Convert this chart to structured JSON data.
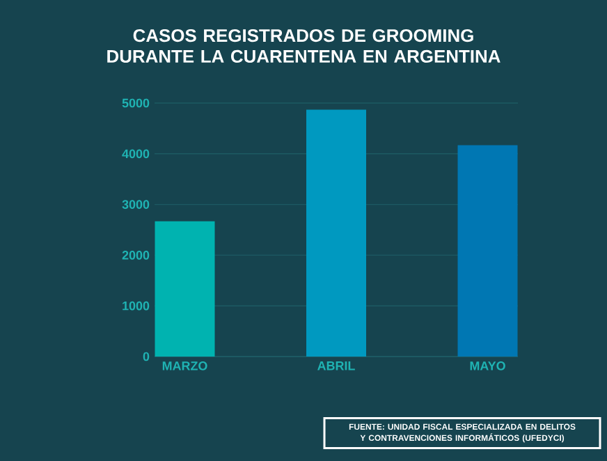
{
  "chart_data": {
    "type": "bar",
    "title": "CASOS REGISTRADOS DE GROOMING DURANTE LA CUARENTENA EN ARGENTINA",
    "categories": [
      "MARZO",
      "ABRIL",
      "MAYO"
    ],
    "values": [
      2670,
      4870,
      4170
    ],
    "colors": [
      "#00b3b0",
      "#0099c0",
      "#0077b3"
    ],
    "ylim": [
      0,
      5000
    ],
    "yticks": [
      0,
      1000,
      2000,
      3000,
      4000,
      5000
    ],
    "grid": "y",
    "annotations": [
      "FUENTE: UNIDAD FISCAL ESPECIALIZADA EN DELITOS Y CONTRAVENCIONES INFORMÁTICOS (UFEDYCI)"
    ]
  }
}
